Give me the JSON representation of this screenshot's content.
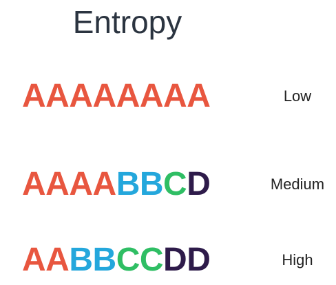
{
  "title": "Entropy",
  "colors": {
    "A": "#e8563f",
    "B": "#24a7dc",
    "C": "#2fbe64",
    "D": "#2e1b4a"
  },
  "rows": [
    {
      "sequence": "AAAAAAAA",
      "label": "Low"
    },
    {
      "sequence": "AAAABBCD",
      "label": "Medium"
    },
    {
      "sequence": "AABBCCDD",
      "label": "High"
    }
  ]
}
